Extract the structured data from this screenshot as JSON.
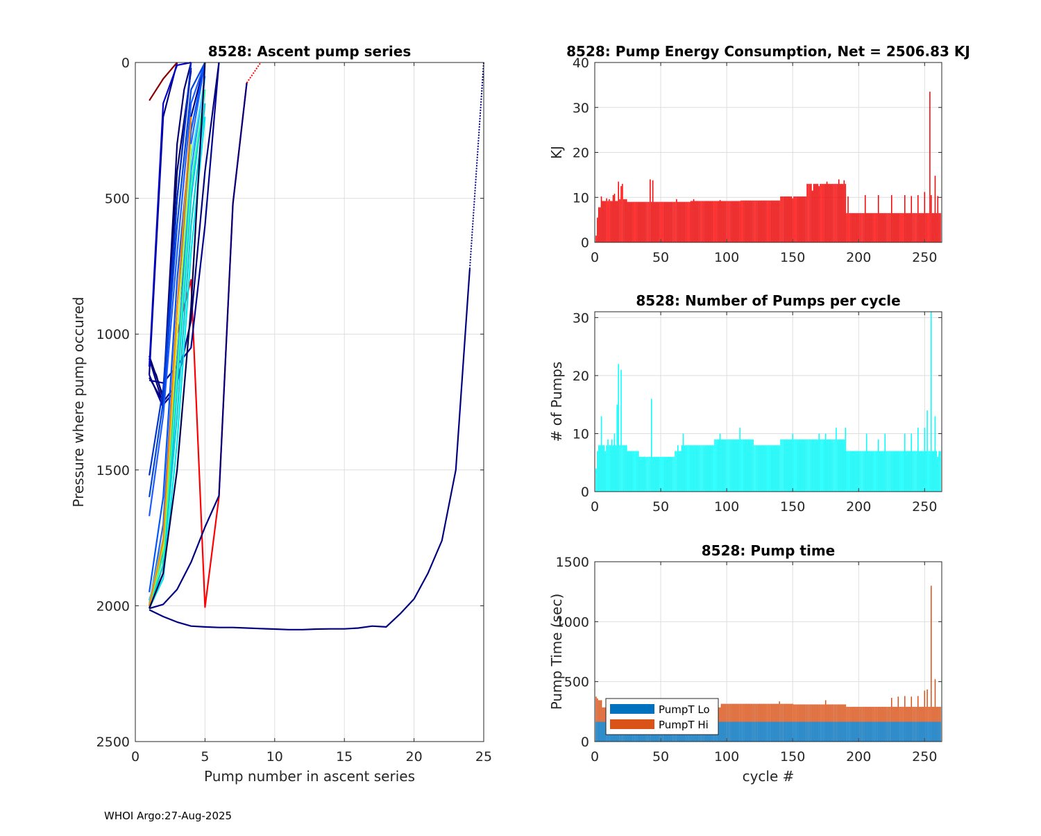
{
  "footer": "WHOI Argo:27-Aug-2025",
  "chart_data": [
    {
      "id": "ascent",
      "type": "line",
      "title": "8528: Ascent pump series",
      "xlabel": "Pump number in ascent series",
      "ylabel": "Pressure where pump occured",
      "xlim": [
        0,
        25
      ],
      "ylim": [
        0,
        2500
      ],
      "y_reversed": true,
      "grid": true,
      "xticks": [
        0,
        5,
        10,
        15,
        20,
        25
      ],
      "yticks": [
        0,
        500,
        1000,
        1500,
        2000,
        2500
      ],
      "series": [
        {
          "name": "long",
          "color": "#000080",
          "x": [
            1,
            2,
            3,
            4,
            5,
            6,
            7,
            8,
            9,
            10,
            11,
            12,
            13,
            14,
            15,
            16,
            17,
            18,
            19,
            20,
            21,
            22,
            23,
            24
          ],
          "y": [
            2015,
            2040,
            2060,
            2075,
            2078,
            2080,
            2080,
            2082,
            2084,
            2086,
            2088,
            2088,
            2086,
            2085,
            2085,
            2082,
            2075,
            2078,
            2030,
            1975,
            1880,
            1760,
            1500,
            760
          ]
        },
        {
          "name": "long-cont",
          "color": "#000080",
          "dotted": true,
          "x": [
            24,
            25
          ],
          "y": [
            760,
            0
          ]
        },
        {
          "name": "red",
          "color": "#ff0000",
          "x": [
            1,
            2,
            3,
            4,
            5,
            6,
            7,
            8
          ],
          "y": [
            2010,
            1850,
            1000,
            800,
            2005,
            1600,
            520,
            75
          ]
        },
        {
          "name": "red-cont",
          "color": "#ff0000",
          "dotted": true,
          "x": [
            8,
            9
          ],
          "y": [
            75,
            0
          ]
        },
        {
          "name": "curve-b",
          "color": "#000080",
          "x": [
            1,
            2,
            3,
            4,
            5,
            6,
            7,
            8
          ],
          "y": [
            2010,
            1995,
            1940,
            1840,
            1710,
            1595,
            520,
            75
          ]
        },
        {
          "name": "dark-1",
          "color": "#000066",
          "x": [
            1,
            1.5,
            2,
            3,
            4
          ],
          "y": [
            1100,
            1150,
            1240,
            400,
            30
          ]
        },
        {
          "name": "dark-2",
          "color": "#00008b",
          "x": [
            1,
            2,
            3,
            4,
            5
          ],
          "y": [
            1090,
            1260,
            1200,
            200,
            0
          ]
        },
        {
          "name": "dark-3",
          "color": "#0000a0",
          "x": [
            1,
            2,
            3,
            4
          ],
          "y": [
            1150,
            1270,
            500,
            20
          ]
        },
        {
          "name": "dark-4",
          "color": "#000070",
          "x": [
            1,
            2,
            3,
            3.5,
            4
          ],
          "y": [
            1080,
            1230,
            300,
            100,
            0
          ]
        },
        {
          "name": "dark-5",
          "color": "#000090",
          "x": [
            1,
            2,
            4,
            5,
            6
          ],
          "y": [
            1170,
            1180,
            1050,
            600,
            0
          ]
        },
        {
          "name": "dark-6",
          "color": "#000080",
          "x": [
            1,
            2,
            3,
            4,
            5,
            6
          ],
          "y": [
            1160,
            1250,
            1180,
            950,
            400,
            0
          ]
        },
        {
          "name": "blue-1",
          "color": "#0033cc",
          "x": [
            1,
            2,
            3,
            4
          ],
          "y": [
            1520,
            1200,
            500,
            0
          ]
        },
        {
          "name": "blue-2",
          "color": "#1a5cff",
          "x": [
            1,
            2,
            3,
            4,
            5
          ],
          "y": [
            1670,
            1300,
            700,
            150,
            0
          ]
        },
        {
          "name": "blue-3",
          "color": "#0044dd",
          "x": [
            1,
            2,
            3,
            4,
            5
          ],
          "y": [
            1600,
            1250,
            600,
            100,
            0
          ]
        },
        {
          "name": "blue-4",
          "color": "#2266ee",
          "x": [
            1,
            2,
            3,
            4,
            5
          ],
          "y": [
            2000,
            1700,
            900,
            300,
            0
          ]
        },
        {
          "name": "blue-5",
          "color": "#0055ff",
          "x": [
            1,
            2,
            3,
            4,
            5
          ],
          "y": [
            1950,
            1600,
            800,
            250,
            0
          ]
        },
        {
          "name": "cyan-1",
          "color": "#00bfff",
          "x": [
            1,
            2,
            3,
            4,
            5
          ],
          "y": [
            2000,
            1880,
            1200,
            500,
            100
          ]
        },
        {
          "name": "cyan-2",
          "color": "#1e90ff",
          "x": [
            1,
            2,
            3,
            4,
            5
          ],
          "y": [
            1980,
            1800,
            1100,
            400,
            50
          ]
        },
        {
          "name": "cyan-3",
          "color": "#00ced1",
          "x": [
            1,
            2,
            3,
            4,
            5
          ],
          "y": [
            2005,
            1850,
            1300,
            600,
            150
          ]
        },
        {
          "name": "cyan-4",
          "color": "#40e0ff",
          "x": [
            1,
            2,
            3,
            4,
            5
          ],
          "y": [
            1990,
            1750,
            1000,
            350,
            60
          ]
        },
        {
          "name": "cyan-5",
          "color": "#00e5ee",
          "x": [
            1,
            2,
            3,
            4,
            5
          ],
          "y": [
            2010,
            1900,
            1400,
            700,
            200
          ]
        },
        {
          "name": "green-1",
          "color": "#33ff99",
          "x": [
            1,
            2,
            3,
            4,
            5
          ],
          "y": [
            2000,
            1820,
            1150,
            450,
            100
          ]
        },
        {
          "name": "yellow-1",
          "color": "#ccee22",
          "x": [
            1,
            2,
            3,
            4
          ],
          "y": [
            2000,
            1780,
            1000,
            300
          ]
        },
        {
          "name": "orange-1",
          "color": "#ff8800",
          "x": [
            1,
            2,
            3,
            4
          ],
          "y": [
            2000,
            1760,
            900,
            200
          ]
        },
        {
          "name": "navy-deep",
          "color": "#000050",
          "x": [
            1,
            2,
            3,
            4,
            5
          ],
          "y": [
            2010,
            1880,
            1500,
            900,
            0
          ]
        },
        {
          "name": "short-1",
          "color": "#000080",
          "x": [
            1,
            2,
            3
          ],
          "y": [
            1150,
            200,
            0
          ]
        },
        {
          "name": "short-2",
          "color": "#0000cc",
          "x": [
            1,
            2,
            3,
            4
          ],
          "y": [
            1120,
            150,
            10,
            0
          ]
        },
        {
          "name": "short-3",
          "color": "#8b0000",
          "x": [
            1,
            2,
            3
          ],
          "y": [
            140,
            60,
            0
          ]
        }
      ]
    },
    {
      "id": "energy",
      "type": "bar",
      "title": "8528: Pump Energy Consumption,  Net = 2506.83 KJ",
      "xlabel": "",
      "ylabel": "KJ",
      "xlim": [
        0,
        263
      ],
      "ylim": [
        0,
        40
      ],
      "xticks": [
        0,
        50,
        100,
        150,
        200,
        250
      ],
      "yticks": [
        0,
        10,
        20,
        30,
        40
      ],
      "grid": true,
      "color": "#ff0000",
      "n": 262,
      "segments": [
        [
          1,
          3,
          7.2
        ],
        [
          4,
          4,
          7.8
        ],
        [
          5,
          17,
          9.2
        ],
        [
          18,
          24,
          9.6
        ],
        [
          25,
          72,
          9.0
        ],
        [
          73,
          110,
          9.2
        ],
        [
          111,
          140,
          9.3
        ],
        [
          141,
          160,
          10.2
        ],
        [
          161,
          190,
          13.0
        ],
        [
          191,
          262,
          6.5
        ]
      ],
      "overrides": {
        "1": 1.5,
        "2": 5.5,
        "3": 7.8,
        "5": 10.2,
        "9": 9.8,
        "11": 9.6,
        "14": 10.5,
        "15": 10.8,
        "18": 13.5,
        "20": 12.5,
        "21": 13.0,
        "22": 9.6,
        "42": 14.0,
        "44": 13.8,
        "62": 9.6,
        "75": 9.6,
        "95": 9.4,
        "150": 9.8,
        "165": 11.5,
        "170": 12.5,
        "176": 13.5,
        "185": 14.0,
        "189": 13.8,
        "192": 10.2,
        "205": 10.5,
        "215": 10.5,
        "225": 10.5,
        "235": 10.5,
        "240": 10.3,
        "245": 10.5,
        "250": 11.2,
        "254": 33.5,
        "255": 10.5,
        "258": 14.8,
        "260": 10.3
      }
    },
    {
      "id": "pumps",
      "type": "bar",
      "title": "8528: Number of Pumps per cycle",
      "xlabel": "",
      "ylabel": "# of Pumps",
      "xlim": [
        0,
        263
      ],
      "ylim": [
        0,
        31
      ],
      "xticks": [
        0,
        50,
        100,
        150,
        200,
        250
      ],
      "yticks": [
        0,
        10,
        20,
        30
      ],
      "grid": true,
      "color": "#00ffff",
      "n": 262,
      "segments": [
        [
          1,
          3,
          4
        ],
        [
          4,
          17,
          8
        ],
        [
          18,
          24,
          8
        ],
        [
          25,
          33,
          7
        ],
        [
          34,
          60,
          6
        ],
        [
          61,
          65,
          7
        ],
        [
          66,
          90,
          8
        ],
        [
          91,
          120,
          9
        ],
        [
          121,
          140,
          8
        ],
        [
          141,
          180,
          9
        ],
        [
          181,
          190,
          9
        ],
        [
          191,
          262,
          7
        ]
      ],
      "overrides": {
        "1": 4,
        "2": 7,
        "3": 8,
        "5": 13,
        "8": 7,
        "10": 9,
        "13": 9,
        "15": 10,
        "17": 15,
        "18": 22,
        "20": 21,
        "21": 8,
        "43": 16,
        "63": 8,
        "67": 10,
        "95": 10,
        "110": 11,
        "150": 10,
        "170": 10,
        "175": 10,
        "183": 11,
        "190": 11,
        "206": 10,
        "215": 9,
        "220": 10,
        "235": 10,
        "240": 10,
        "245": 11,
        "250": 11,
        "252": 14,
        "255": 31,
        "258": 13,
        "260": 6
      }
    },
    {
      "id": "pumptime",
      "type": "bar",
      "stacked": true,
      "title": "8528: Pump time",
      "xlabel": "cycle #",
      "ylabel": "Pump Time (sec)",
      "xlim": [
        0,
        263
      ],
      "ylim": [
        0,
        1500
      ],
      "xticks": [
        0,
        50,
        100,
        150,
        200,
        250
      ],
      "yticks": [
        0,
        500,
        1000,
        1500
      ],
      "grid": true,
      "legend": "bottom-left",
      "series_names": [
        "PumpT Lo",
        "PumpT Hi"
      ],
      "colors": [
        "#0072bd",
        "#d95319"
      ],
      "n": 262,
      "lo_value": 165,
      "hi_segments": [
        [
          1,
          5,
          180
        ],
        [
          6,
          95,
          120
        ],
        [
          96,
          150,
          150
        ],
        [
          151,
          190,
          145
        ],
        [
          191,
          262,
          125
        ]
      ],
      "hi_overrides": {
        "1": 210,
        "2": 195,
        "140": 170,
        "175": 180,
        "225": 200,
        "230": 210,
        "235": 215,
        "240": 210,
        "245": 215,
        "250": 260,
        "252": 270,
        "255": 1135,
        "258": 355
      }
    }
  ]
}
